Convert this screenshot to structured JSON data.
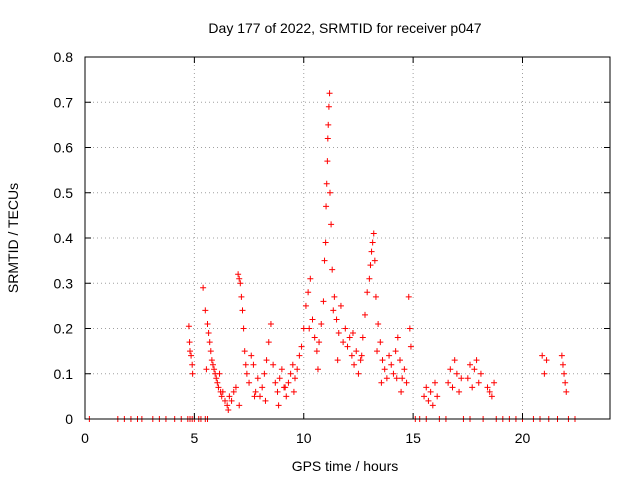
{
  "chart_data": {
    "type": "scatter",
    "title": "Day 177 of 2022, SRMTID for receiver p047",
    "xlabel": "GPS time / hours",
    "ylabel": "SRMTID / TECUs",
    "xlim": [
      0,
      24
    ],
    "ylim": [
      0,
      0.8
    ],
    "xticks": [
      0,
      5,
      10,
      15,
      20
    ],
    "xtick_labels": [
      "0",
      "5",
      "10",
      "15",
      "20"
    ],
    "yticks": [
      0,
      0.1,
      0.2,
      0.3,
      0.4,
      0.5,
      0.6,
      0.7,
      0.8
    ],
    "ytick_labels": [
      "0",
      "0.1",
      "0.2",
      "0.3",
      "0.4",
      "0.5",
      "0.6",
      "0.7",
      "0.8"
    ],
    "grid": true,
    "marker": "+",
    "color": "#ff0000",
    "series": [
      {
        "name": "SRMTID",
        "x": [
          0.2,
          1.5,
          1.8,
          2.1,
          2.4,
          2.6,
          3.1,
          3.4,
          3.7,
          4.1,
          4.4,
          4.7,
          4.8,
          4.9,
          5.0,
          5.2,
          5.3,
          5.5,
          5.6,
          4.75,
          4.78,
          4.8,
          4.85,
          4.9,
          4.92,
          5.4,
          5.5,
          5.6,
          5.65,
          5.7,
          5.75,
          5.8,
          5.85,
          5.9,
          5.95,
          6.0,
          6.05,
          6.1,
          6.2,
          6.25,
          6.3,
          6.4,
          6.5,
          6.6,
          6.7,
          6.8,
          6.9,
          7.0,
          7.05,
          7.1,
          7.15,
          7.2,
          7.25,
          7.3,
          7.35,
          7.4,
          7.5,
          7.6,
          7.7,
          7.8,
          7.9,
          8.0,
          8.1,
          8.2,
          8.3,
          8.4,
          8.5,
          8.6,
          8.7,
          8.8,
          8.9,
          9.0,
          9.1,
          9.2,
          9.3,
          9.4,
          9.5,
          9.6,
          9.7,
          9.8,
          9.9,
          10.0,
          10.1,
          10.2,
          10.3,
          10.4,
          10.5,
          10.6,
          10.7,
          10.8,
          10.9,
          10.95,
          11.0,
          11.02,
          11.05,
          11.08,
          11.1,
          11.12,
          11.15,
          11.18,
          11.2,
          11.25,
          11.3,
          11.4,
          11.5,
          11.6,
          11.7,
          11.8,
          11.9,
          12.0,
          12.1,
          12.2,
          12.3,
          12.4,
          12.5,
          12.6,
          12.7,
          12.8,
          12.9,
          13.0,
          13.05,
          13.1,
          13.15,
          13.2,
          13.25,
          13.3,
          13.4,
          13.5,
          13.6,
          13.7,
          13.8,
          13.9,
          14.0,
          14.1,
          14.2,
          14.3,
          14.4,
          14.5,
          14.6,
          14.7,
          14.8,
          14.85,
          14.9,
          15.5,
          15.6,
          15.7,
          15.8,
          15.9,
          16.0,
          16.1,
          16.6,
          16.7,
          16.8,
          16.9,
          17.0,
          17.1,
          17.2,
          17.5,
          17.6,
          17.7,
          17.8,
          17.9,
          18.0,
          18.1,
          18.4,
          18.5,
          18.6,
          18.7,
          20.9,
          21.0,
          21.1,
          21.8,
          21.85,
          21.9,
          21.95,
          22.0,
          15.1,
          15.3,
          15.6,
          16.2,
          16.5,
          17.3,
          17.6,
          18.2,
          18.8,
          19.1,
          19.4,
          19.7,
          20.0,
          20.5,
          20.8,
          21.2,
          21.6,
          22.1,
          22.4,
          5.55,
          6.15,
          7.05,
          8.25,
          9.15,
          10.25,
          11.35,
          12.25,
          13.35,
          14.25,
          6.55,
          7.75,
          8.85,
          9.55,
          10.65,
          11.55,
          12.65,
          13.55,
          14.45
        ],
        "y": [
          0,
          0,
          0,
          0,
          0,
          0,
          0,
          0,
          0,
          0,
          0,
          0,
          0,
          0,
          0,
          0,
          0,
          0,
          0,
          0.205,
          0.17,
          0.15,
          0.14,
          0.12,
          0.1,
          0.29,
          0.24,
          0.21,
          0.19,
          0.17,
          0.15,
          0.13,
          0.12,
          0.11,
          0.1,
          0.09,
          0.08,
          0.07,
          0.06,
          0.05,
          0.06,
          0.04,
          0.03,
          0.05,
          0.04,
          0.06,
          0.07,
          0.32,
          0.31,
          0.3,
          0.27,
          0.24,
          0.2,
          0.15,
          0.12,
          0.1,
          0.08,
          0.14,
          0.12,
          0.06,
          0.09,
          0.05,
          0.07,
          0.1,
          0.13,
          0.17,
          0.21,
          0.12,
          0.08,
          0.06,
          0.09,
          0.11,
          0.07,
          0.05,
          0.08,
          0.1,
          0.12,
          0.09,
          0.11,
          0.14,
          0.16,
          0.2,
          0.25,
          0.28,
          0.31,
          0.22,
          0.18,
          0.15,
          0.17,
          0.21,
          0.26,
          0.35,
          0.39,
          0.47,
          0.52,
          0.57,
          0.62,
          0.65,
          0.69,
          0.72,
          0.5,
          0.43,
          0.33,
          0.27,
          0.22,
          0.19,
          0.25,
          0.17,
          0.2,
          0.16,
          0.18,
          0.14,
          0.12,
          0.15,
          0.1,
          0.13,
          0.18,
          0.23,
          0.28,
          0.31,
          0.34,
          0.37,
          0.39,
          0.41,
          0.35,
          0.27,
          0.21,
          0.17,
          0.13,
          0.11,
          0.09,
          0.14,
          0.12,
          0.1,
          0.15,
          0.18,
          0.13,
          0.09,
          0.11,
          0.08,
          0.27,
          0.2,
          0.16,
          0.05,
          0.07,
          0.04,
          0.06,
          0.03,
          0.08,
          0.05,
          0.08,
          0.11,
          0.07,
          0.13,
          0.1,
          0.06,
          0.09,
          0.09,
          0.12,
          0.07,
          0.11,
          0.13,
          0.08,
          0.1,
          0.07,
          0.06,
          0.05,
          0.08,
          0.14,
          0.1,
          0.13,
          0.14,
          0.12,
          0.1,
          0.08,
          0.06,
          0,
          0,
          0,
          0,
          0,
          0,
          0,
          0,
          0,
          0,
          0,
          0,
          0,
          0,
          0,
          0,
          0,
          0,
          0,
          0.11,
          0.1,
          0.03,
          0.04,
          0.07,
          0.2,
          0.24,
          0.19,
          0.15,
          0.09,
          0.02,
          0.05,
          0.03,
          0.06,
          0.11,
          0.13,
          0.14,
          0.08,
          0.06
        ]
      }
    ]
  }
}
